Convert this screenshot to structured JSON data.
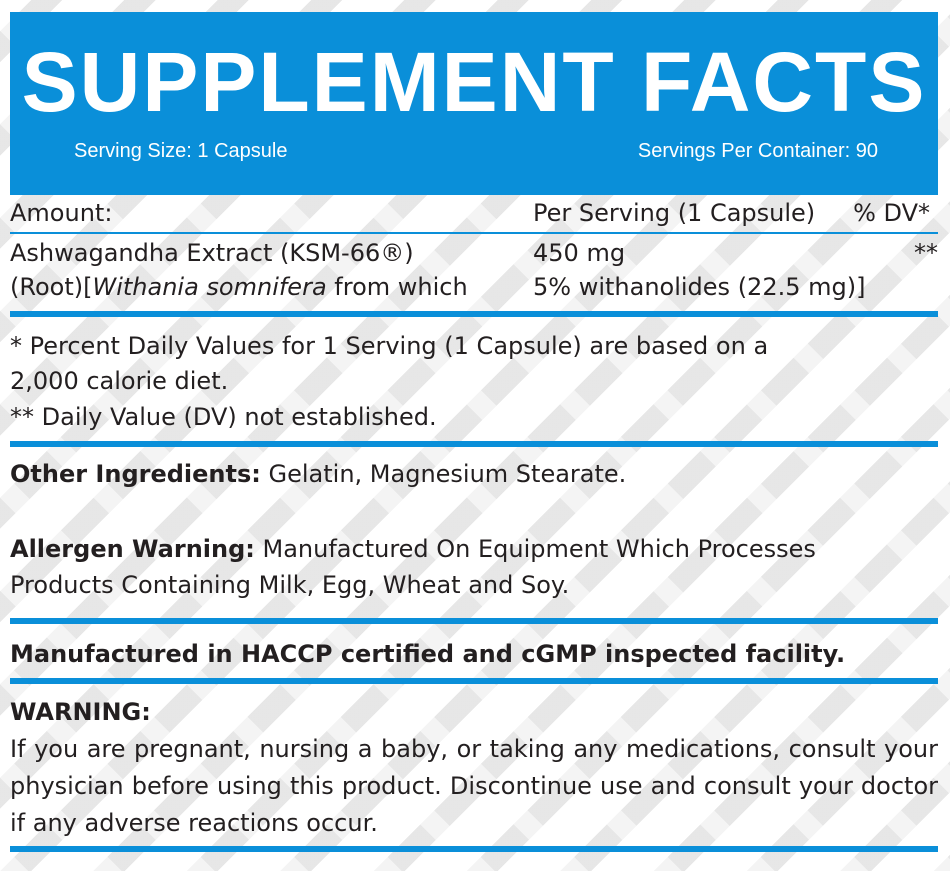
{
  "header": {
    "title": "SUPPLEMENT FACTS",
    "serving_size": "Serving Size: 1 Capsule",
    "servings_per_container": "Servings Per Container: 90"
  },
  "table": {
    "col_amount": "Amount:",
    "col_per_serving": "Per Serving (1 Capsule)",
    "col_dv": "% DV*",
    "rows": [
      {
        "name_line1": "Ashwagandha Extract (KSM-66®)",
        "name_line2_pre": "(Root)[",
        "name_line2_italic": "Withania somnifera",
        "name_line2_post": " from which",
        "amount": "450 mg",
        "amount_note": "5% withanolides (22.5 mg)]",
        "dv": "**"
      }
    ]
  },
  "footnotes": {
    "line1": "* Percent Daily Values for 1 Serving (1 Capsule) are based on a",
    "line2": "2,000 calorie diet.",
    "line3": "** Daily Value (DV) not established."
  },
  "other_ingredients": {
    "label": "Other Ingredients:",
    "text": " Gelatin, Magnesium Stearate."
  },
  "allergen": {
    "label": "Allergen Warning:",
    "text_line1": " Manufactured On Equipment Which Processes",
    "text_line2": "Products Containing Milk, Egg, Wheat and Soy."
  },
  "manufacturing": "Manufactured in HACCP certified and cGMP inspected facility.",
  "warning": {
    "label": "WARNING:",
    "text": "If you are pregnant, nursing a baby, or taking any medications, consult your physician before using this product. Discontinue use and consult your doctor if any adverse reactions occur."
  },
  "colors": {
    "accent": "#0a8fd9",
    "text": "#231f20"
  }
}
